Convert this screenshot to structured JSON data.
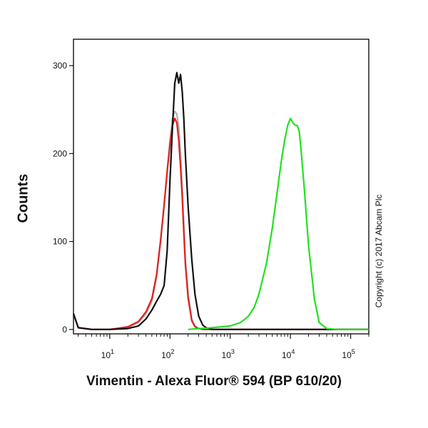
{
  "chart_data": {
    "type": "line",
    "xlabel": "Vimentin - Alexa Fluor® 594 (BP 610/20)",
    "ylabel": "Counts",
    "x_scale": "log",
    "xlim": [
      2.5,
      200000
    ],
    "ylim": [
      -5,
      330
    ],
    "y_ticks": [
      0,
      100,
      200,
      300
    ],
    "x_ticks": [
      {
        "value": 10,
        "base": "10",
        "exp": "1"
      },
      {
        "value": 100,
        "base": "10",
        "exp": "2"
      },
      {
        "value": 1000,
        "base": "10",
        "exp": "3"
      },
      {
        "value": 10000,
        "base": "10",
        "exp": "4"
      },
      {
        "value": 100000,
        "base": "10",
        "exp": "5"
      }
    ],
    "grid": false,
    "series": [
      {
        "color": "#b0b0b0",
        "x": [
          2.5,
          3,
          5,
          10,
          20,
          30,
          40,
          50,
          60,
          70,
          80,
          90,
          100,
          110,
          120,
          130,
          140,
          150,
          160,
          170,
          180,
          200,
          230,
          260,
          300,
          350,
          400,
          500,
          1000,
          100000,
          200000
        ],
        "y": [
          18,
          2,
          0,
          0,
          2,
          8,
          18,
          32,
          60,
          100,
          140,
          180,
          215,
          240,
          248,
          245,
          230,
          200,
          160,
          120,
          80,
          40,
          12,
          4,
          1,
          0,
          0,
          0,
          0,
          0,
          0
        ]
      },
      {
        "color": "#e02020",
        "x": [
          2.5,
          3,
          5,
          10,
          20,
          30,
          40,
          50,
          60,
          70,
          80,
          90,
          100,
          110,
          120,
          130,
          140,
          150,
          160,
          170,
          180,
          200,
          230,
          260,
          300,
          350,
          400,
          500,
          1000,
          100000,
          200000
        ],
        "y": [
          18,
          2,
          0,
          0,
          3,
          9,
          20,
          35,
          62,
          102,
          142,
          180,
          210,
          232,
          240,
          235,
          215,
          185,
          150,
          110,
          75,
          36,
          10,
          3,
          1,
          0,
          0,
          0,
          0,
          0,
          0
        ]
      },
      {
        "color": "#111111",
        "x": [
          2.5,
          3,
          5,
          10,
          20,
          30,
          40,
          50,
          60,
          70,
          80,
          90,
          100,
          110,
          120,
          130,
          140,
          150,
          160,
          170,
          180,
          200,
          230,
          260,
          300,
          350,
          400,
          450,
          500,
          600,
          1000,
          100000,
          200000
        ],
        "y": [
          18,
          2,
          0,
          0,
          1,
          4,
          12,
          22,
          32,
          40,
          50,
          90,
          170,
          230,
          280,
          292,
          280,
          290,
          270,
          240,
          200,
          140,
          80,
          40,
          15,
          5,
          2,
          1,
          0,
          0,
          0,
          0,
          0
        ]
      },
      {
        "color": "#22e022",
        "x": [
          200,
          500,
          1000,
          1500,
          2000,
          2500,
          3000,
          4000,
          5000,
          6000,
          7000,
          8000,
          9000,
          10000,
          11000,
          12000,
          13000,
          14000,
          15000,
          17000,
          20000,
          25000,
          30000,
          40000,
          60000,
          100000,
          200000
        ],
        "y": [
          0,
          2,
          4,
          8,
          15,
          25,
          40,
          75,
          115,
          155,
          190,
          215,
          232,
          240,
          235,
          232,
          232,
          225,
          205,
          160,
          95,
          35,
          8,
          1,
          0,
          0,
          0
        ]
      }
    ]
  },
  "copyright": "Copyright (c) 2017 Abcam Plc"
}
